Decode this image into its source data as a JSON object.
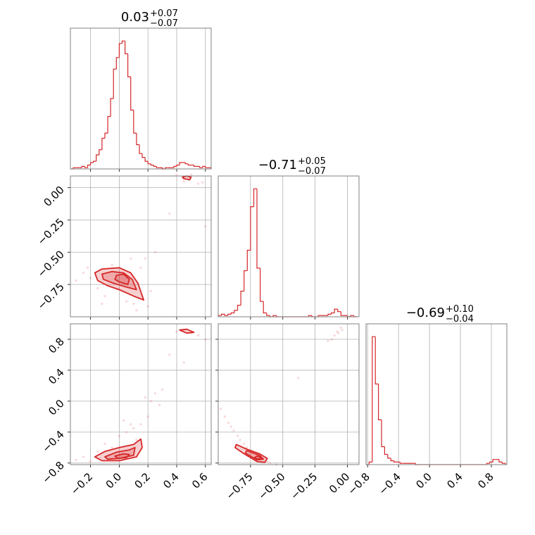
{
  "chart_data": {
    "type": "corner",
    "color": "#d62728",
    "parameters": [
      {
        "title": {
          "value": "0.03",
          "plus": "+0.07",
          "minus": "−0.07"
        },
        "lim": [
          -0.34,
          0.64
        ],
        "ticks": [
          {
            "value": -0.2,
            "label": "−0.2"
          },
          {
            "value": 0.0,
            "label": "0.0"
          },
          {
            "value": 0.2,
            "label": "0.2"
          },
          {
            "value": 0.4,
            "label": "0.4"
          },
          {
            "value": 0.6,
            "label": "0.6"
          }
        ],
        "hist": {
          "ylim": [
            0,
            110
          ],
          "bins": [
            -0.34,
            -0.32,
            -0.3,
            -0.28,
            -0.26,
            -0.24,
            -0.22,
            -0.2,
            -0.18,
            -0.16,
            -0.14,
            -0.12,
            -0.1,
            -0.08,
            -0.06,
            -0.04,
            -0.02,
            0.0,
            0.02,
            0.04,
            0.06,
            0.08,
            0.1,
            0.12,
            0.14,
            0.16,
            0.18,
            0.2,
            0.22,
            0.24,
            0.26,
            0.28,
            0.3,
            0.32,
            0.34,
            0.36,
            0.38,
            0.4,
            0.42,
            0.44,
            0.46,
            0.48,
            0.5,
            0.52,
            0.54,
            0.56,
            0.58,
            0.6,
            0.62,
            0.64
          ],
          "counts": [
            0,
            1,
            1,
            1,
            2,
            1,
            3,
            5,
            6,
            11,
            15,
            24,
            28,
            41,
            55,
            78,
            87,
            98,
            100,
            90,
            72,
            46,
            28,
            19,
            12,
            9,
            6,
            4,
            3,
            2,
            1,
            1,
            0,
            1,
            1,
            1,
            2,
            3,
            5,
            5,
            4,
            3,
            3,
            2,
            2,
            1,
            2,
            1,
            1
          ]
        }
      },
      {
        "title": {
          "value": "−0.71",
          "plus": "+0.05",
          "minus": "−0.07"
        },
        "lim": [
          -1.0,
          0.09
        ],
        "ticks": [
          {
            "value": 0.0,
            "label": "0.00"
          },
          {
            "value": -0.25,
            "label": "−0.25"
          },
          {
            "value": -0.5,
            "label": "−0.50"
          },
          {
            "value": -0.75,
            "label": "−0.75"
          }
        ],
        "hist": {
          "ylim": [
            0,
            110
          ],
          "bins": [
            -1.0,
            -0.975,
            -0.95,
            -0.925,
            -0.9,
            -0.875,
            -0.85,
            -0.825,
            -0.8,
            -0.775,
            -0.75,
            -0.725,
            -0.7,
            -0.675,
            -0.65,
            -0.625,
            -0.6,
            -0.575,
            -0.55,
            -0.525,
            -0.5,
            -0.475,
            -0.45,
            -0.425,
            -0.4,
            -0.375,
            -0.35,
            -0.325,
            -0.3,
            -0.275,
            -0.25,
            -0.225,
            -0.2,
            -0.175,
            -0.15,
            -0.125,
            -0.1,
            -0.075,
            -0.05,
            -0.025,
            0.0,
            0.025,
            0.05,
            0.075
          ],
          "counts": [
            1,
            2,
            1,
            2,
            3,
            5,
            9,
            20,
            36,
            52,
            86,
            100,
            38,
            12,
            3,
            1,
            0,
            1,
            0,
            0,
            0,
            0,
            0,
            0,
            0,
            0,
            0,
            0,
            1,
            0,
            0,
            1,
            1,
            1,
            2,
            3,
            6,
            4,
            1,
            1,
            0,
            1,
            0
          ]
        }
      },
      {
        "title": {
          "value": "−0.69",
          "plus": "+0.10",
          "minus": "−0.04"
        },
        "lim": [
          -0.82,
          1.0
        ],
        "ticks": [
          {
            "value": -0.8,
            "label": "−0.8"
          },
          {
            "value": -0.4,
            "label": "−0.4"
          },
          {
            "value": 0.0,
            "label": "0.0"
          },
          {
            "value": 0.4,
            "label": "0.4"
          },
          {
            "value": 0.8,
            "label": "0.8"
          }
        ],
        "hist": {
          "ylim": [
            0,
            110
          ],
          "bins": [
            -0.82,
            -0.78,
            -0.74,
            -0.7,
            -0.66,
            -0.62,
            -0.58,
            -0.54,
            -0.5,
            -0.46,
            -0.42,
            -0.38,
            -0.34,
            -0.3,
            -0.26,
            -0.22,
            -0.18,
            -0.14,
            -0.1,
            -0.06,
            -0.02,
            0.02,
            0.06,
            0.1,
            0.14,
            0.18,
            0.22,
            0.26,
            0.3,
            0.34,
            0.38,
            0.42,
            0.46,
            0.5,
            0.54,
            0.58,
            0.62,
            0.66,
            0.7,
            0.74,
            0.78,
            0.82,
            0.86,
            0.9,
            0.94,
            0.98
          ],
          "counts": [
            0,
            2,
            100,
            63,
            35,
            14,
            8,
            5,
            3,
            2,
            2,
            1,
            1,
            1,
            1,
            1,
            0,
            0,
            0,
            0,
            0,
            0,
            0,
            0,
            0,
            0,
            0,
            0,
            0,
            0,
            0,
            0,
            0,
            0,
            0,
            0,
            0,
            0,
            0,
            1,
            2,
            4,
            4,
            2,
            1
          ]
        }
      }
    ],
    "pairs": [
      {
        "points": {
          "x": [
            -0.25,
            -0.2,
            -0.15,
            -0.1,
            -0.05,
            0.05,
            0.1,
            0.15,
            0.2,
            0.22,
            -0.22,
            -0.3,
            0.25,
            0.12,
            0.18,
            0.45,
            0.5,
            0.55,
            0.58,
            0.4,
            0.6,
            0.3,
            0.35,
            -0.12,
            0.08
          ],
          "y": [
            -0.66,
            -0.7,
            -0.78,
            -0.84,
            -0.6,
            -0.88,
            -0.9,
            -0.62,
            -0.92,
            -0.8,
            -0.62,
            -0.72,
            -0.5,
            -0.95,
            -0.55,
            0.05,
            0.1,
            0.03,
            0.04,
            0.1,
            -0.3,
            0.15,
            -0.2,
            -0.9,
            -0.55
          ]
        },
        "contours": [
          {
            "x": [
              -0.17,
              -0.12,
              0.0,
              0.08,
              0.13,
              0.17,
              0.1,
              0.0,
              -0.08,
              -0.15
            ],
            "y": [
              -0.66,
              -0.63,
              -0.62,
              -0.66,
              -0.74,
              -0.87,
              -0.84,
              -0.79,
              -0.76,
              -0.72
            ]
          },
          {
            "x": [
              -0.12,
              -0.05,
              0.03,
              0.09,
              0.12,
              0.05,
              -0.04,
              -0.11
            ],
            "y": [
              -0.67,
              -0.65,
              -0.66,
              -0.71,
              -0.79,
              -0.77,
              -0.74,
              -0.71
            ]
          },
          {
            "x": [
              -0.02,
              0.03,
              0.07,
              0.06,
              0.0,
              -0.03
            ],
            "y": [
              -0.68,
              -0.67,
              -0.71,
              -0.75,
              -0.73,
              -0.71
            ]
          },
          {
            "x": [
              0.44,
              0.47,
              0.5,
              0.49,
              0.45
            ],
            "y": [
              0.08,
              0.09,
              0.08,
              0.06,
              0.07
            ]
          }
        ]
      },
      {
        "points": {
          "x": [
            -0.25,
            -0.2,
            -0.15,
            -0.1,
            0.05,
            0.1,
            0.15,
            0.2,
            0.22,
            0.3,
            0.12,
            0.0,
            -0.05,
            0.18,
            0.25,
            0.4,
            0.5,
            0.55,
            0.6,
            0.35,
            -0.3,
            0.08,
            0.28,
            0.45,
            0.03
          ],
          "y": [
            -0.72,
            -0.78,
            -0.65,
            -0.55,
            -0.4,
            -0.35,
            -0.3,
            -0.2,
            0.0,
            0.15,
            -0.5,
            -0.45,
            -0.6,
            0.05,
            0.1,
            0.9,
            0.88,
            0.85,
            0.8,
            0.6,
            -0.76,
            -0.3,
            -0.05,
            0.5,
            -0.25
          ]
        },
        "contours": [
          {
            "x": [
              -0.17,
              -0.1,
              0.0,
              0.1,
              0.15,
              0.16,
              0.12,
              0.0,
              -0.12
            ],
            "y": [
              -0.72,
              -0.65,
              -0.6,
              -0.56,
              -0.49,
              -0.6,
              -0.72,
              -0.77,
              -0.77
            ]
          },
          {
            "x": [
              -0.1,
              -0.02,
              0.07,
              0.11,
              0.1,
              0.0,
              -0.08
            ],
            "y": [
              -0.72,
              -0.66,
              -0.63,
              -0.6,
              -0.7,
              -0.74,
              -0.75
            ]
          },
          {
            "x": [
              -0.03,
              0.03,
              0.07,
              0.05,
              -0.01
            ],
            "y": [
              -0.71,
              -0.68,
              -0.69,
              -0.73,
              -0.74
            ]
          },
          {
            "x": [
              0.42,
              0.47,
              0.52,
              0.47
            ],
            "y": [
              0.92,
              0.93,
              0.89,
              0.88
            ]
          }
        ]
      },
      {
        "points": {
          "x": [
            -0.98,
            -0.95,
            -0.92,
            -0.9,
            -0.88,
            -0.85,
            -0.83,
            -0.8,
            -0.78,
            -0.75,
            -0.73,
            -0.7,
            -0.68,
            -0.65,
            -0.62,
            -0.6,
            -0.55,
            -0.1,
            -0.08,
            -0.05,
            -0.12,
            -0.07,
            -0.15,
            -0.04,
            -0.38
          ],
          "y": [
            -0.1,
            -0.2,
            -0.28,
            -0.33,
            -0.38,
            -0.45,
            -0.5,
            -0.55,
            -0.6,
            -0.64,
            -0.67,
            -0.7,
            -0.72,
            -0.75,
            -0.78,
            -0.8,
            -0.82,
            0.85,
            0.9,
            0.95,
            0.8,
            0.88,
            0.78,
            0.92,
            0.3
          ]
        },
        "contours": [
          {
            "x": [
              -0.86,
              -0.78,
              -0.68,
              -0.62,
              -0.64,
              -0.7,
              -0.8,
              -0.87
            ],
            "y": [
              -0.56,
              -0.62,
              -0.68,
              -0.74,
              -0.79,
              -0.78,
              -0.68,
              -0.6
            ]
          },
          {
            "x": [
              -0.78,
              -0.68,
              -0.65,
              -0.7,
              -0.79
            ],
            "y": [
              -0.64,
              -0.7,
              -0.75,
              -0.76,
              -0.67
            ]
          },
          {
            "x": [
              -0.7,
              -0.66,
              -0.69,
              -0.72
            ],
            "y": [
              -0.71,
              -0.73,
              -0.75,
              -0.73
            ]
          }
        ]
      }
    ]
  }
}
